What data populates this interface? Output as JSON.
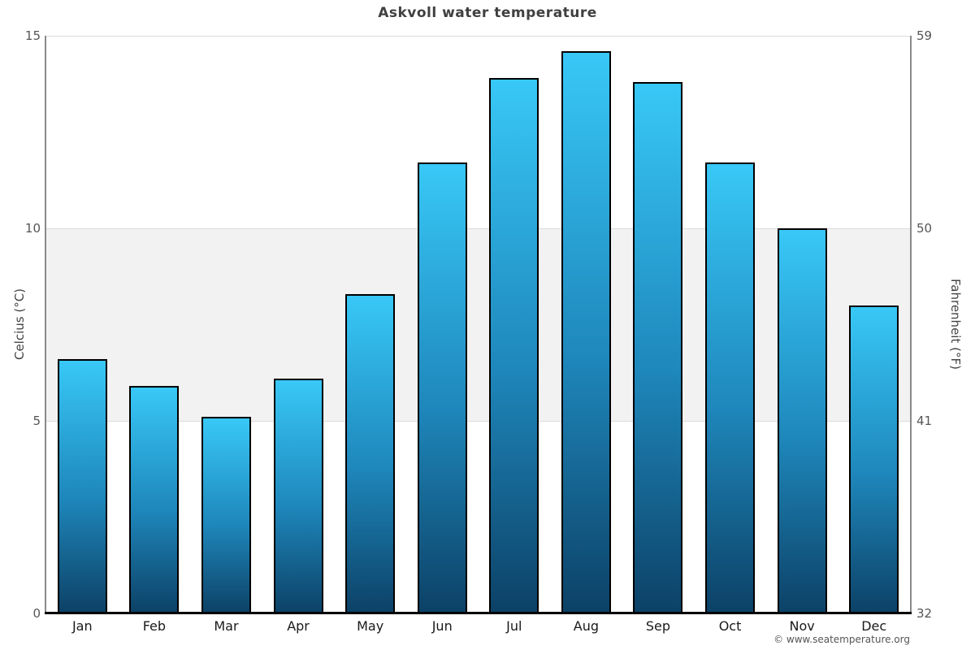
{
  "title": "Askvoll water temperature",
  "copyright": "© www.seatemperature.org",
  "chart_data": {
    "type": "bar",
    "title": "Askvoll water temperature",
    "categories": [
      "Jan",
      "Feb",
      "Mar",
      "Apr",
      "May",
      "Jun",
      "Jul",
      "Aug",
      "Sep",
      "Oct",
      "Nov",
      "Dec"
    ],
    "values": [
      6.6,
      5.9,
      5.1,
      6.1,
      8.3,
      11.7,
      13.9,
      14.6,
      13.8,
      11.7,
      10.0,
      8.0
    ],
    "ylabel_left": "Celcius (°C)",
    "ylabel_right": "Fahrenheit (°F)",
    "ylim": [
      0,
      15
    ],
    "yticks_left": [
      15,
      10,
      5,
      0
    ],
    "yticks_right": [
      59,
      50,
      41,
      32
    ],
    "grid": "horizontal gridlines at 5, 10, 15",
    "legend": "none",
    "band": {
      "from": 5,
      "to": 10,
      "color": "#f2f2f2"
    },
    "colors": {
      "bar_gradient_top": "#38c8f7",
      "bar_gradient_mid": "#1e86ba",
      "bar_gradient_bottom": "#0c4166",
      "bar_border": "#000000",
      "axis": "#8a8a8a",
      "baseline": "#000000",
      "gridline": "#dcdcdc",
      "tick_text": "#555555",
      "title_text": "#404040"
    }
  }
}
